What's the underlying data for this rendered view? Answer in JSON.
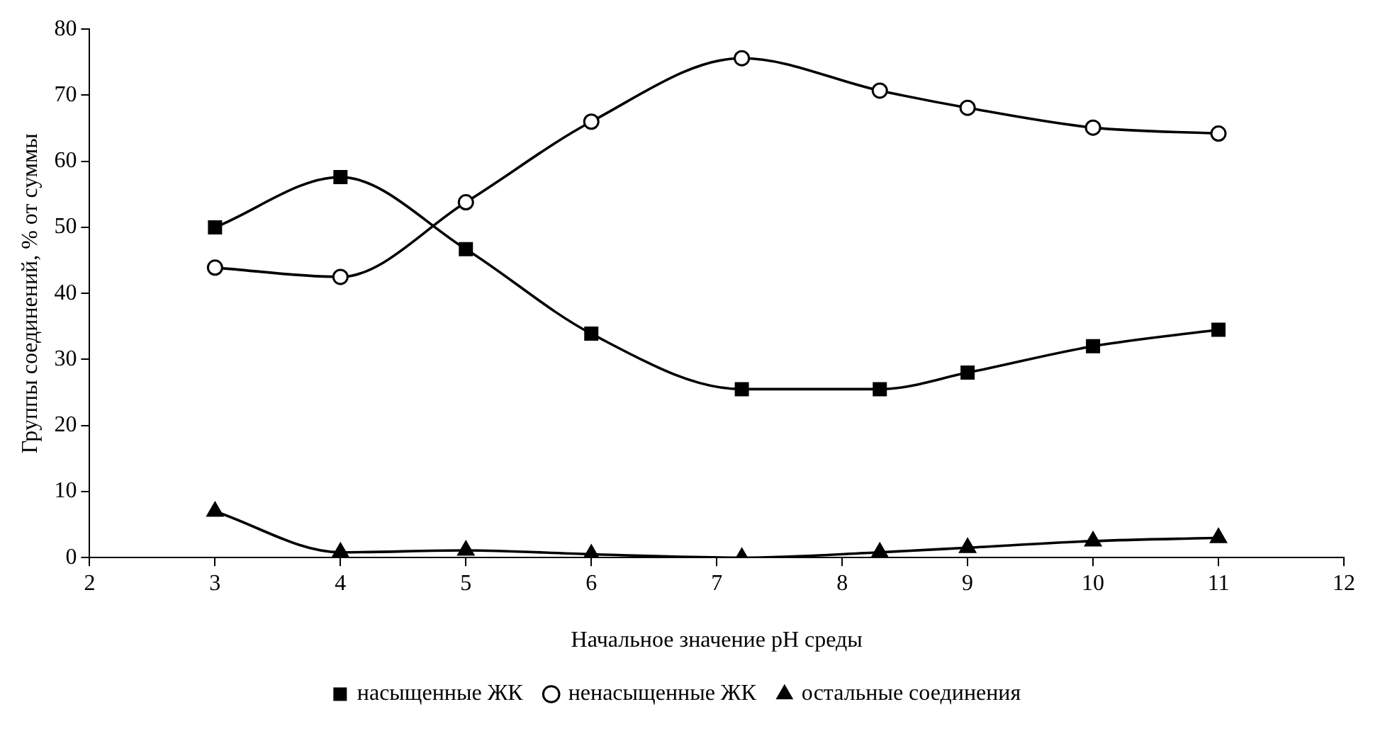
{
  "chart_data": {
    "type": "line",
    "xlabel": "Начальное значение pH среды",
    "ylabel": "Группы соединений, % от суммы",
    "x": [
      3,
      4,
      5,
      6,
      7.2,
      8.3,
      9,
      10,
      11
    ],
    "series": [
      {
        "name": "насыщенные ЖК",
        "color": "#000000",
        "marker": "square",
        "values": [
          50,
          57.6,
          46.7,
          33.9,
          25.5,
          25.5,
          28,
          32,
          34.5
        ]
      },
      {
        "name": "ненасыщенные ЖК",
        "color": "#000000",
        "marker": "circle",
        "values": [
          43.9,
          42.5,
          53.8,
          66,
          75.6,
          70.7,
          68.1,
          65.1,
          64.2
        ]
      },
      {
        "name": "остальные соединения",
        "color": "#000000",
        "marker": "triangle",
        "values": [
          7,
          0.8,
          1.1,
          0.5,
          0,
          0.8,
          1.5,
          2.5,
          3
        ]
      }
    ],
    "xlim": [
      2,
      12
    ],
    "xticks": [
      2,
      3,
      4,
      5,
      6,
      7,
      8,
      9,
      10,
      11,
      12
    ],
    "ylim": [
      0,
      80
    ],
    "yticks": [
      0,
      10,
      20,
      30,
      40,
      50,
      60,
      70,
      80
    ],
    "grid": false,
    "legend": "bottom",
    "line_style": "solid"
  }
}
